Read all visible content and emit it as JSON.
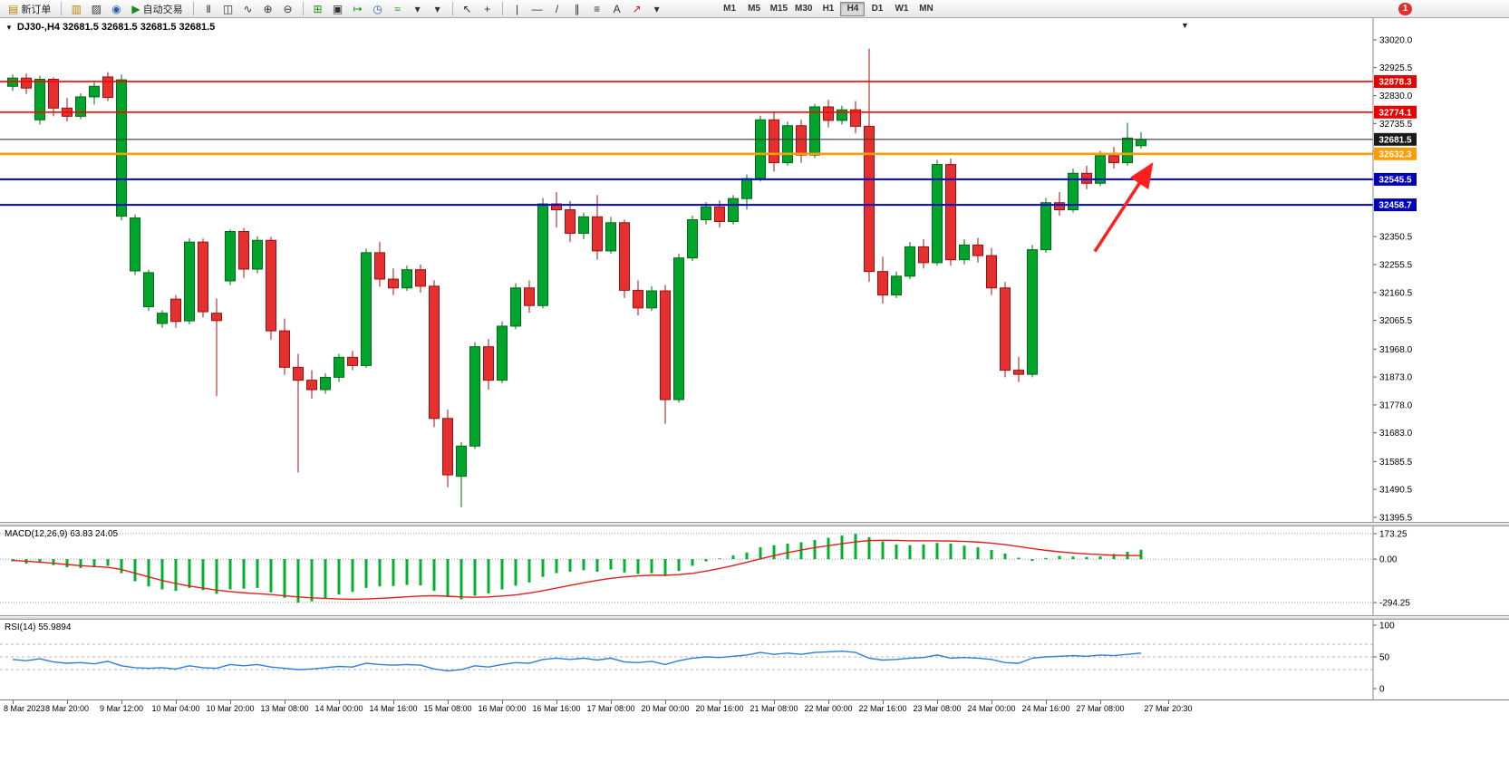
{
  "toolbar": {
    "new_order_label": "新订单",
    "autotrading_label": "自动交易",
    "timeframes": [
      "M1",
      "M5",
      "M15",
      "M30",
      "H1",
      "H4",
      "D1",
      "W1",
      "MN"
    ],
    "active_timeframe": "H4",
    "notification_badge": "1"
  },
  "icons": {
    "new-order-icon": "▤",
    "charts-stack-icon": "▥",
    "print-icon": "▨",
    "community-icon": "◉",
    "play-icon": "▶",
    "bar-chart-icon": "|||",
    "candlestick-icon": "◫",
    "line-chart-icon": "∿",
    "zoom-in-icon": "⊕",
    "zoom-out-icon": "⊖",
    "tile-windows-icon": "⊞",
    "cascade-icon": "▣",
    "chart-shift-icon": "↦",
    "clock-icon": "◷",
    "indicators-icon": "≈",
    "dropdown-icon": "▾",
    "cursor-icon": "↖",
    "crosshair-icon": "+",
    "vertical-line-icon": "|",
    "horizontal-line-icon": "—",
    "trendline-icon": "/",
    "channel-icon": "∥",
    "fibonacci-icon": "≡",
    "text-icon": "A",
    "arrows-icon": "↗"
  },
  "chart_header": {
    "text": "DJ30-,H4  32681.5 32681.5 32681.5 32681.5"
  },
  "price_axis": {
    "ticks": [
      "33020.0",
      "32925.5",
      "32830.0",
      "32735.5",
      "32640.5",
      "32545.5",
      "32450.5",
      "32350.5",
      "32255.5",
      "32160.5",
      "32065.5",
      "31968.0",
      "31873.0",
      "31778.0",
      "31683.0",
      "31585.5",
      "31490.5",
      "31395.5"
    ]
  },
  "chart_data": {
    "type": "candlestick",
    "symbol": "DJ30-",
    "period": "H4",
    "current_price": 32681.5,
    "price_range": [
      31380,
      33094
    ],
    "colors": {
      "up": "#00a42b",
      "up_stroke": "#006b16",
      "down": "#e53030",
      "down_stroke": "#9c1010",
      "macd_histogram": "#00b42a",
      "macd_signal": "#e02020",
      "rsi_line": "#2f7ed8"
    },
    "candles": [
      [
        32862,
        32902,
        32846,
        32890
      ],
      [
        32890,
        32906,
        32836,
        32856
      ],
      [
        32748,
        32898,
        32732,
        32886
      ],
      [
        32886,
        32892,
        32760,
        32788
      ],
      [
        32788,
        32822,
        32742,
        32760
      ],
      [
        32760,
        32838,
        32750,
        32826
      ],
      [
        32826,
        32876,
        32800,
        32862
      ],
      [
        32894,
        32910,
        32812,
        32824
      ],
      [
        32420,
        32902,
        32406,
        32884
      ],
      [
        32234,
        32426,
        32220,
        32414
      ],
      [
        32112,
        32238,
        32098,
        32228
      ],
      [
        32055,
        32100,
        32040,
        32090
      ],
      [
        32138,
        32152,
        32040,
        32062
      ],
      [
        32064,
        32345,
        32052,
        32332
      ],
      [
        32332,
        32344,
        32076,
        32095
      ],
      [
        32090,
        32140,
        31808,
        32065
      ],
      [
        32200,
        32375,
        32185,
        32368
      ],
      [
        32368,
        32380,
        32210,
        32240
      ],
      [
        32240,
        32352,
        32226,
        32338
      ],
      [
        32338,
        32350,
        32000,
        32030
      ],
      [
        32030,
        32072,
        31880,
        31906
      ],
      [
        31906,
        31952,
        31548,
        31862
      ],
      [
        31862,
        31896,
        31800,
        31830
      ],
      [
        31830,
        31886,
        31816,
        31872
      ],
      [
        31872,
        31952,
        31856,
        31940
      ],
      [
        31940,
        31962,
        31896,
        31912
      ],
      [
        31912,
        32310,
        31904,
        32296
      ],
      [
        32296,
        32332,
        32180,
        32206
      ],
      [
        32206,
        32242,
        32152,
        32176
      ],
      [
        32176,
        32252,
        32166,
        32238
      ],
      [
        32238,
        32256,
        32160,
        32182
      ],
      [
        32182,
        32202,
        31702,
        31732
      ],
      [
        31732,
        31762,
        31498,
        31540
      ],
      [
        31535,
        31652,
        31430,
        31638
      ],
      [
        31638,
        31992,
        31628,
        31976
      ],
      [
        31976,
        32002,
        31830,
        31862
      ],
      [
        31862,
        32062,
        31852,
        32046
      ],
      [
        32046,
        32192,
        32036,
        32176
      ],
      [
        32176,
        32202,
        32092,
        32116
      ],
      [
        32116,
        32482,
        32106,
        32462
      ],
      [
        32462,
        32502,
        32382,
        32442
      ],
      [
        32442,
        32472,
        32332,
        32362
      ],
      [
        32362,
        32432,
        32342,
        32418
      ],
      [
        32418,
        32492,
        32272,
        32302
      ],
      [
        32302,
        32418,
        32292,
        32398
      ],
      [
        32398,
        32408,
        32142,
        32168
      ],
      [
        32168,
        32202,
        32082,
        32108
      ],
      [
        32108,
        32182,
        32098,
        32166
      ],
      [
        32166,
        32186,
        31714,
        31796
      ],
      [
        31796,
        32292,
        31786,
        32278
      ],
      [
        32278,
        32422,
        32268,
        32408
      ],
      [
        32408,
        32468,
        32392,
        32452
      ],
      [
        32452,
        32474,
        32382,
        32402
      ],
      [
        32402,
        32492,
        32392,
        32480
      ],
      [
        32480,
        32562,
        32442,
        32548
      ],
      [
        32548,
        32762,
        32538,
        32748
      ],
      [
        32748,
        32772,
        32572,
        32602
      ],
      [
        32602,
        32742,
        32592,
        32728
      ],
      [
        32728,
        32748,
        32602,
        32628
      ],
      [
        32628,
        32802,
        32618,
        32792
      ],
      [
        32792,
        32816,
        32722,
        32746
      ],
      [
        32746,
        32796,
        32732,
        32782
      ],
      [
        32782,
        32812,
        32702,
        32726
      ],
      [
        32726,
        32990,
        32196,
        32232
      ],
      [
        32232,
        32282,
        32122,
        32152
      ],
      [
        32152,
        32232,
        32142,
        32216
      ],
      [
        32216,
        32332,
        32206,
        32316
      ],
      [
        32316,
        32342,
        32242,
        32262
      ],
      [
        32262,
        32612,
        32252,
        32596
      ],
      [
        32596,
        32616,
        32252,
        32272
      ],
      [
        32272,
        32342,
        32256,
        32322
      ],
      [
        32322,
        32346,
        32262,
        32286
      ],
      [
        32286,
        32312,
        32152,
        32176
      ],
      [
        32176,
        32196,
        31872,
        31896
      ],
      [
        31896,
        31942,
        31856,
        31882
      ],
      [
        31882,
        32322,
        31872,
        32306
      ],
      [
        32306,
        32482,
        32296,
        32466
      ],
      [
        32466,
        32502,
        32422,
        32442
      ],
      [
        32442,
        32582,
        32432,
        32566
      ],
      [
        32566,
        32592,
        32512,
        32532
      ],
      [
        32532,
        32642,
        32522,
        32626
      ],
      [
        32626,
        32656,
        32582,
        32602
      ],
      [
        32602,
        32738,
        32592,
        32686
      ],
      [
        32660,
        32706,
        32650,
        32681.5
      ]
    ],
    "time_labels": [
      [
        0,
        "8 Mar 2023"
      ],
      [
        4,
        "8 Mar 20:00"
      ],
      [
        8,
        "9 Mar 12:00"
      ],
      [
        12,
        "10 Mar 04:00"
      ],
      [
        16,
        "10 Mar 20:00"
      ],
      [
        20,
        "13 Mar 08:00"
      ],
      [
        24,
        "14 Mar 00:00"
      ],
      [
        28,
        "14 Mar 16:00"
      ],
      [
        32,
        "15 Mar 08:00"
      ],
      [
        36,
        "16 Mar 00:00"
      ],
      [
        40,
        "16 Mar 16:00"
      ],
      [
        44,
        "17 Mar 08:00"
      ],
      [
        48,
        "20 Mar 00:00"
      ],
      [
        52,
        "20 Mar 16:00"
      ],
      [
        56,
        "21 Mar 08:00"
      ],
      [
        60,
        "22 Mar 00:00"
      ],
      [
        64,
        "22 Mar 16:00"
      ],
      [
        68,
        "23 Mar 08:00"
      ],
      [
        72,
        "24 Mar 00:00"
      ],
      [
        76,
        "24 Mar 16:00"
      ],
      [
        80,
        "27 Mar 08:00"
      ],
      [
        85,
        "27 Mar 20:30"
      ]
    ],
    "overlay_lines": [
      {
        "name": "resistance-line-1",
        "price": 32878.3,
        "label": "32878.3",
        "color": "#ff0000",
        "width": 1.6,
        "badge_bg": "#e80000"
      },
      {
        "name": "resistance-line-2",
        "price": 32774.1,
        "label": "32774.1",
        "color": "#ff0000",
        "width": 1.6,
        "badge_bg": "#e80000"
      },
      {
        "name": "current-price-line",
        "price": 32681.5,
        "label": "32681.5",
        "color": "#3a3a3a",
        "width": 1.1,
        "badge_bg": "#1a1a1a"
      },
      {
        "name": "pivot-line-orange",
        "price": 32632.3,
        "label": "32632.3",
        "color": "#ff9d00",
        "width": 2.6,
        "badge_bg": "#ff9d00"
      },
      {
        "name": "support-line-1",
        "price": 32545.5,
        "label": "32545.5",
        "color": "#0000cd",
        "width": 2,
        "badge_bg": "#0000bb"
      },
      {
        "name": "support-line-2",
        "price": 32458.7,
        "label": "32458.7",
        "color": "#0000cd",
        "width": 2,
        "badge_bg": "#0000bb"
      }
    ],
    "arrow_annotation": {
      "from": [
        79.6,
        32300
      ],
      "to": [
        83.7,
        32590
      ],
      "color": "#ff1f1f"
    },
    "indicators": [
      {
        "type": "macd_histogram",
        "name": "MACD(12,26,9)",
        "display_label": "MACD(12,26,9) 63.83 24.05",
        "main_value": 63.83,
        "signal_value": 24.05,
        "scale": [
          -380,
          222
        ],
        "axis_ticks": [
          173.25,
          0,
          -294.25
        ],
        "axis_labels": [
          "173.25",
          "0.00",
          "-294.25"
        ],
        "histogram": [
          -15,
          -30,
          -25,
          -40,
          -55,
          -60,
          -50,
          -45,
          -95,
          -150,
          -185,
          -205,
          -215,
          -195,
          -210,
          -235,
          -205,
          -200,
          -195,
          -225,
          -262,
          -294,
          -286,
          -268,
          -240,
          -222,
          -195,
          -185,
          -182,
          -175,
          -178,
          -215,
          -258,
          -272,
          -248,
          -232,
          -205,
          -180,
          -158,
          -120,
          -95,
          -85,
          -75,
          -85,
          -70,
          -90,
          -100,
          -95,
          -115,
          -80,
          -45,
          -15,
          5,
          25,
          45,
          80,
          95,
          105,
          115,
          130,
          145,
          160,
          172,
          150,
          120,
          100,
          95,
          100,
          110,
          105,
          92,
          80,
          62,
          38,
          10,
          -12,
          8,
          22,
          18,
          15,
          20,
          35,
          50,
          63.83
        ],
        "signal": [
          -8,
          -14,
          -20,
          -28,
          -36,
          -44,
          -50,
          -55,
          -70,
          -95,
          -120,
          -145,
          -165,
          -182,
          -196,
          -210,
          -220,
          -228,
          -234,
          -240,
          -248,
          -256,
          -262,
          -266,
          -270,
          -272,
          -270,
          -266,
          -261,
          -255,
          -250,
          -248,
          -251,
          -256,
          -258,
          -256,
          -250,
          -242,
          -230,
          -214,
          -196,
          -178,
          -160,
          -144,
          -130,
          -120,
          -113,
          -109,
          -109,
          -105,
          -96,
          -81,
          -63,
          -43,
          -21,
          2,
          24,
          44,
          62,
          78,
          92,
          105,
          117,
          126,
          128,
          127,
          125,
          124,
          124,
          123,
          120,
          116,
          109,
          99,
          86,
          72,
          60,
          50,
          42,
          36,
          31,
          27,
          25,
          24.05
        ]
      },
      {
        "type": "rsi",
        "name": "RSI(14)",
        "display_label": "RSI(14) 55.9894",
        "value": 55.9894,
        "scale": [
          0,
          100
        ],
        "levels": [
          70,
          50,
          30
        ],
        "axis_ticks": [
          100,
          50,
          0
        ],
        "axis_labels": [
          "100",
          "50",
          "0"
        ],
        "values": [
          46,
          44,
          47,
          42,
          40,
          41,
          39,
          43,
          36,
          33,
          32,
          33,
          31,
          36,
          33,
          32,
          38,
          36,
          38,
          34,
          32,
          30,
          31,
          33,
          35,
          34,
          40,
          38,
          37,
          38,
          37,
          31,
          28,
          30,
          36,
          34,
          38,
          41,
          40,
          46,
          48,
          46,
          48,
          45,
          48,
          42,
          41,
          43,
          38,
          44,
          48,
          50,
          49,
          51,
          53,
          57,
          54,
          56,
          54,
          57,
          58,
          59,
          57,
          48,
          45,
          46,
          48,
          49,
          53,
          48,
          49,
          48,
          46,
          41,
          40,
          48,
          50,
          51,
          52,
          51,
          53,
          52,
          54,
          55.99
        ]
      }
    ]
  }
}
